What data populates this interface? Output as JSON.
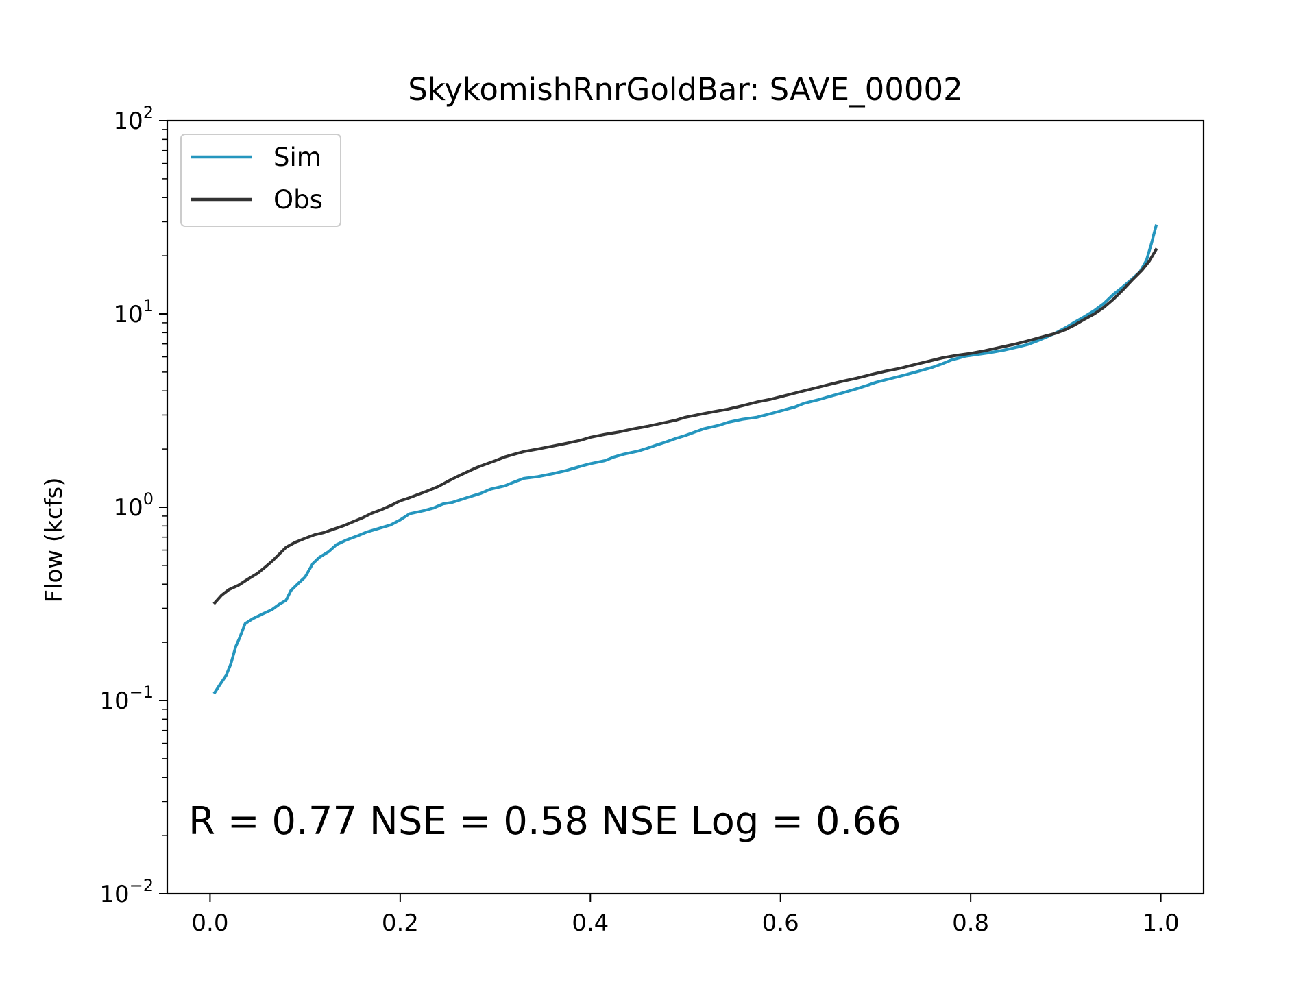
{
  "chart_data": {
    "type": "line",
    "title": "SkykomishRnrGoldBar: SAVE_00002",
    "xlabel": "",
    "ylabel": "Flow (kcfs)",
    "yscale": "log",
    "xlim": [
      -0.045,
      1.045
    ],
    "ylim": [
      0.01,
      100
    ],
    "x_ticks": [
      0.0,
      0.2,
      0.4,
      0.6,
      0.8,
      1.0
    ],
    "x_tick_labels": [
      "0.0",
      "0.2",
      "0.4",
      "0.6",
      "0.8",
      "1.0"
    ],
    "y_ticks": [
      0.01,
      0.1,
      1,
      10,
      100
    ],
    "y_tick_labels": [
      {
        "base": "10",
        "exp": "−2"
      },
      {
        "base": "10",
        "exp": "−1"
      },
      {
        "base": "10",
        "exp": "0"
      },
      {
        "base": "10",
        "exp": "1"
      },
      {
        "base": "10",
        "exp": "2"
      }
    ],
    "grid": false,
    "legend_position": "upper-left",
    "annotation": "R = 0.77  NSE = 0.58  NSE Log = 0.66",
    "series": [
      {
        "name": "Sim",
        "color": "#2596be",
        "points": [
          [
            0.005,
            0.11
          ],
          [
            0.01,
            0.12
          ],
          [
            0.017,
            0.135
          ],
          [
            0.022,
            0.155
          ],
          [
            0.027,
            0.19
          ],
          [
            0.031,
            0.21
          ],
          [
            0.037,
            0.25
          ],
          [
            0.045,
            0.265
          ],
          [
            0.055,
            0.28
          ],
          [
            0.065,
            0.295
          ],
          [
            0.073,
            0.315
          ],
          [
            0.08,
            0.33
          ],
          [
            0.085,
            0.37
          ],
          [
            0.092,
            0.4
          ],
          [
            0.1,
            0.435
          ],
          [
            0.108,
            0.51
          ],
          [
            0.115,
            0.55
          ],
          [
            0.125,
            0.59
          ],
          [
            0.133,
            0.64
          ],
          [
            0.143,
            0.675
          ],
          [
            0.155,
            0.71
          ],
          [
            0.165,
            0.745
          ],
          [
            0.175,
            0.77
          ],
          [
            0.19,
            0.81
          ],
          [
            0.2,
            0.86
          ],
          [
            0.21,
            0.925
          ],
          [
            0.225,
            0.96
          ],
          [
            0.235,
            0.99
          ],
          [
            0.245,
            1.04
          ],
          [
            0.255,
            1.06
          ],
          [
            0.27,
            1.12
          ],
          [
            0.285,
            1.18
          ],
          [
            0.295,
            1.24
          ],
          [
            0.31,
            1.29
          ],
          [
            0.32,
            1.35
          ],
          [
            0.33,
            1.41
          ],
          [
            0.345,
            1.44
          ],
          [
            0.36,
            1.49
          ],
          [
            0.375,
            1.55
          ],
          [
            0.39,
            1.63
          ],
          [
            0.4,
            1.68
          ],
          [
            0.415,
            1.74
          ],
          [
            0.425,
            1.82
          ],
          [
            0.435,
            1.88
          ],
          [
            0.45,
            1.95
          ],
          [
            0.46,
            2.02
          ],
          [
            0.47,
            2.1
          ],
          [
            0.48,
            2.18
          ],
          [
            0.49,
            2.27
          ],
          [
            0.5,
            2.35
          ],
          [
            0.51,
            2.45
          ],
          [
            0.52,
            2.55
          ],
          [
            0.535,
            2.65
          ],
          [
            0.545,
            2.75
          ],
          [
            0.56,
            2.85
          ],
          [
            0.575,
            2.92
          ],
          [
            0.59,
            3.05
          ],
          [
            0.6,
            3.15
          ],
          [
            0.615,
            3.3
          ],
          [
            0.625,
            3.45
          ],
          [
            0.64,
            3.6
          ],
          [
            0.655,
            3.78
          ],
          [
            0.665,
            3.9
          ],
          [
            0.68,
            4.1
          ],
          [
            0.69,
            4.25
          ],
          [
            0.7,
            4.42
          ],
          [
            0.715,
            4.62
          ],
          [
            0.73,
            4.82
          ],
          [
            0.745,
            5.05
          ],
          [
            0.76,
            5.3
          ],
          [
            0.77,
            5.52
          ],
          [
            0.78,
            5.78
          ],
          [
            0.795,
            6.05
          ],
          [
            0.81,
            6.2
          ],
          [
            0.82,
            6.3
          ],
          [
            0.835,
            6.5
          ],
          [
            0.85,
            6.75
          ],
          [
            0.86,
            6.95
          ],
          [
            0.87,
            7.25
          ],
          [
            0.88,
            7.6
          ],
          [
            0.89,
            8.0
          ],
          [
            0.9,
            8.5
          ],
          [
            0.91,
            9.1
          ],
          [
            0.92,
            9.7
          ],
          [
            0.93,
            10.4
          ],
          [
            0.94,
            11.3
          ],
          [
            0.95,
            12.6
          ],
          [
            0.96,
            13.8
          ],
          [
            0.97,
            15.2
          ],
          [
            0.978,
            16.5
          ],
          [
            0.985,
            19.0
          ],
          [
            0.99,
            23.0
          ],
          [
            0.995,
            28.5
          ]
        ]
      },
      {
        "name": "Obs",
        "color": "#333333",
        "points": [
          [
            0.005,
            0.32
          ],
          [
            0.012,
            0.35
          ],
          [
            0.02,
            0.375
          ],
          [
            0.03,
            0.395
          ],
          [
            0.04,
            0.425
          ],
          [
            0.05,
            0.455
          ],
          [
            0.058,
            0.49
          ],
          [
            0.066,
            0.53
          ],
          [
            0.074,
            0.58
          ],
          [
            0.08,
            0.62
          ],
          [
            0.09,
            0.66
          ],
          [
            0.1,
            0.69
          ],
          [
            0.11,
            0.72
          ],
          [
            0.12,
            0.74
          ],
          [
            0.13,
            0.77
          ],
          [
            0.14,
            0.8
          ],
          [
            0.15,
            0.84
          ],
          [
            0.16,
            0.88
          ],
          [
            0.17,
            0.93
          ],
          [
            0.18,
            0.97
          ],
          [
            0.19,
            1.02
          ],
          [
            0.2,
            1.08
          ],
          [
            0.21,
            1.12
          ],
          [
            0.22,
            1.17
          ],
          [
            0.23,
            1.22
          ],
          [
            0.24,
            1.28
          ],
          [
            0.25,
            1.36
          ],
          [
            0.26,
            1.44
          ],
          [
            0.27,
            1.52
          ],
          [
            0.28,
            1.6
          ],
          [
            0.29,
            1.67
          ],
          [
            0.3,
            1.74
          ],
          [
            0.31,
            1.82
          ],
          [
            0.32,
            1.88
          ],
          [
            0.33,
            1.94
          ],
          [
            0.345,
            2.0
          ],
          [
            0.36,
            2.07
          ],
          [
            0.375,
            2.14
          ],
          [
            0.39,
            2.22
          ],
          [
            0.4,
            2.3
          ],
          [
            0.415,
            2.38
          ],
          [
            0.43,
            2.45
          ],
          [
            0.445,
            2.54
          ],
          [
            0.46,
            2.62
          ],
          [
            0.475,
            2.72
          ],
          [
            0.49,
            2.82
          ],
          [
            0.5,
            2.92
          ],
          [
            0.515,
            3.02
          ],
          [
            0.53,
            3.12
          ],
          [
            0.545,
            3.22
          ],
          [
            0.56,
            3.35
          ],
          [
            0.575,
            3.5
          ],
          [
            0.59,
            3.62
          ],
          [
            0.605,
            3.78
          ],
          [
            0.62,
            3.95
          ],
          [
            0.635,
            4.12
          ],
          [
            0.65,
            4.3
          ],
          [
            0.665,
            4.48
          ],
          [
            0.68,
            4.65
          ],
          [
            0.695,
            4.85
          ],
          [
            0.71,
            5.05
          ],
          [
            0.725,
            5.22
          ],
          [
            0.74,
            5.45
          ],
          [
            0.755,
            5.68
          ],
          [
            0.77,
            5.92
          ],
          [
            0.785,
            6.1
          ],
          [
            0.8,
            6.25
          ],
          [
            0.815,
            6.45
          ],
          [
            0.83,
            6.7
          ],
          [
            0.845,
            6.95
          ],
          [
            0.86,
            7.25
          ],
          [
            0.875,
            7.6
          ],
          [
            0.89,
            7.95
          ],
          [
            0.9,
            8.3
          ],
          [
            0.91,
            8.8
          ],
          [
            0.92,
            9.4
          ],
          [
            0.93,
            10.0
          ],
          [
            0.94,
            10.8
          ],
          [
            0.95,
            11.9
          ],
          [
            0.96,
            13.3
          ],
          [
            0.97,
            15.0
          ],
          [
            0.98,
            16.8
          ],
          [
            0.988,
            18.8
          ],
          [
            0.995,
            21.5
          ]
        ]
      }
    ]
  }
}
